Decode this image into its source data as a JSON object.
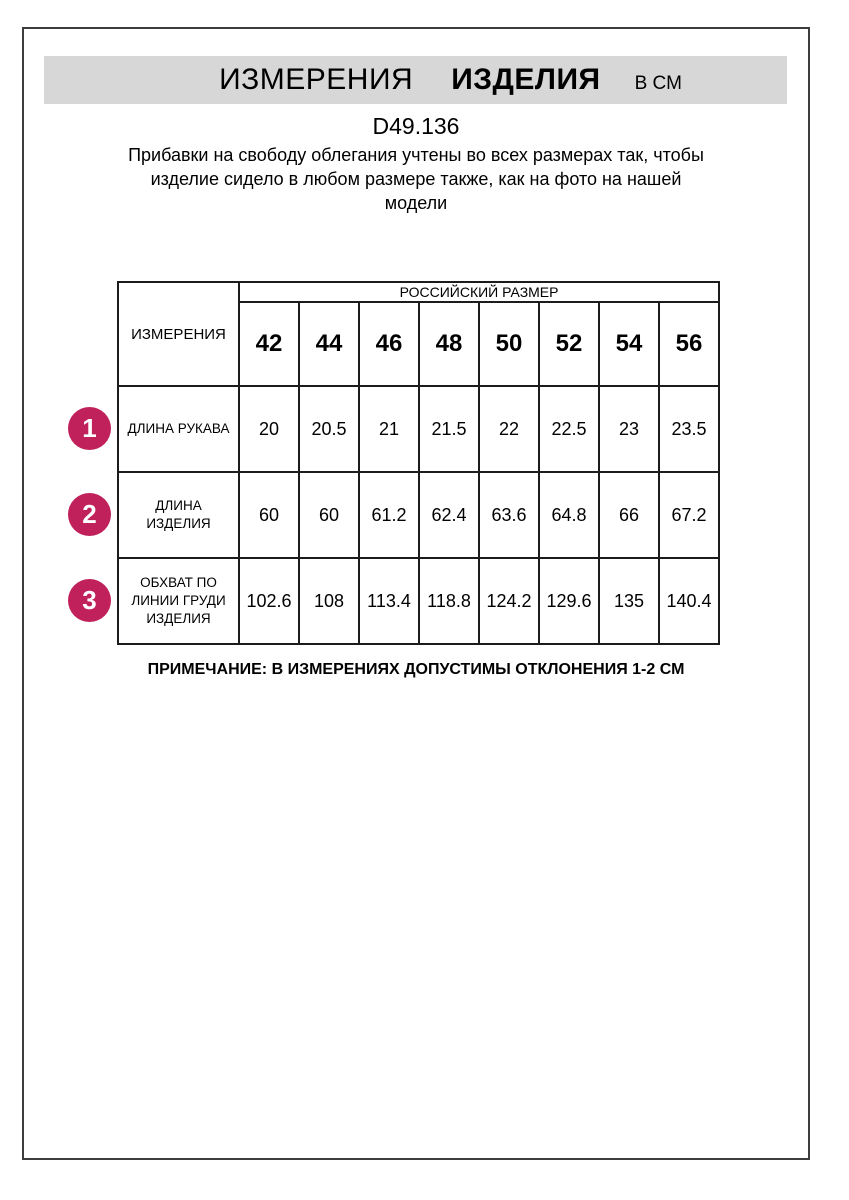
{
  "header": {
    "title_regular": "ИЗМЕРЕНИЯ",
    "title_bold": "ИЗДЕЛИЯ",
    "unit": "В СМ",
    "model_code": "D49.136",
    "description": "Прибавки на свободу облегания учтены во всех размерах так, чтобы\nизделие сидело в любом размере также, как на фото на нашей\nмодели"
  },
  "table": {
    "measure_header": "ИЗМЕРЕНИЯ",
    "group_header": "РОССИЙСКИЙ РАЗМЕР",
    "sizes": [
      "42",
      "44",
      "46",
      "48",
      "50",
      "52",
      "54",
      "56"
    ],
    "rows": [
      {
        "num": "1",
        "label": "ДЛИНА РУКАВА",
        "values": [
          "20",
          "20.5",
          "21",
          "21.5",
          "22",
          "22.5",
          "23",
          "23.5"
        ]
      },
      {
        "num": "2",
        "label": "ДЛИНА\nИЗДЕЛИЯ",
        "values": [
          "60",
          "60",
          "61.2",
          "62.4",
          "63.6",
          "64.8",
          "66",
          "67.2"
        ]
      },
      {
        "num": "3",
        "label": "ОБХВАТ ПО\nЛИНИИ ГРУДИ\nИЗДЕЛИЯ",
        "values": [
          "102.6",
          "108",
          "113.4",
          "118.8",
          "124.2",
          "129.6",
          "135",
          "140.4"
        ]
      }
    ]
  },
  "footer": {
    "note": "ПРИМЕЧАНИЕ: В ИЗМЕРЕНИЯХ ДОПУСТИМЫ ОТКЛОНЕНИЯ 1-2 СМ"
  },
  "colors": {
    "accent_circle": "#c0215a",
    "banner_gray": "#d7d7d7",
    "table_border": "#1c1c1c"
  }
}
